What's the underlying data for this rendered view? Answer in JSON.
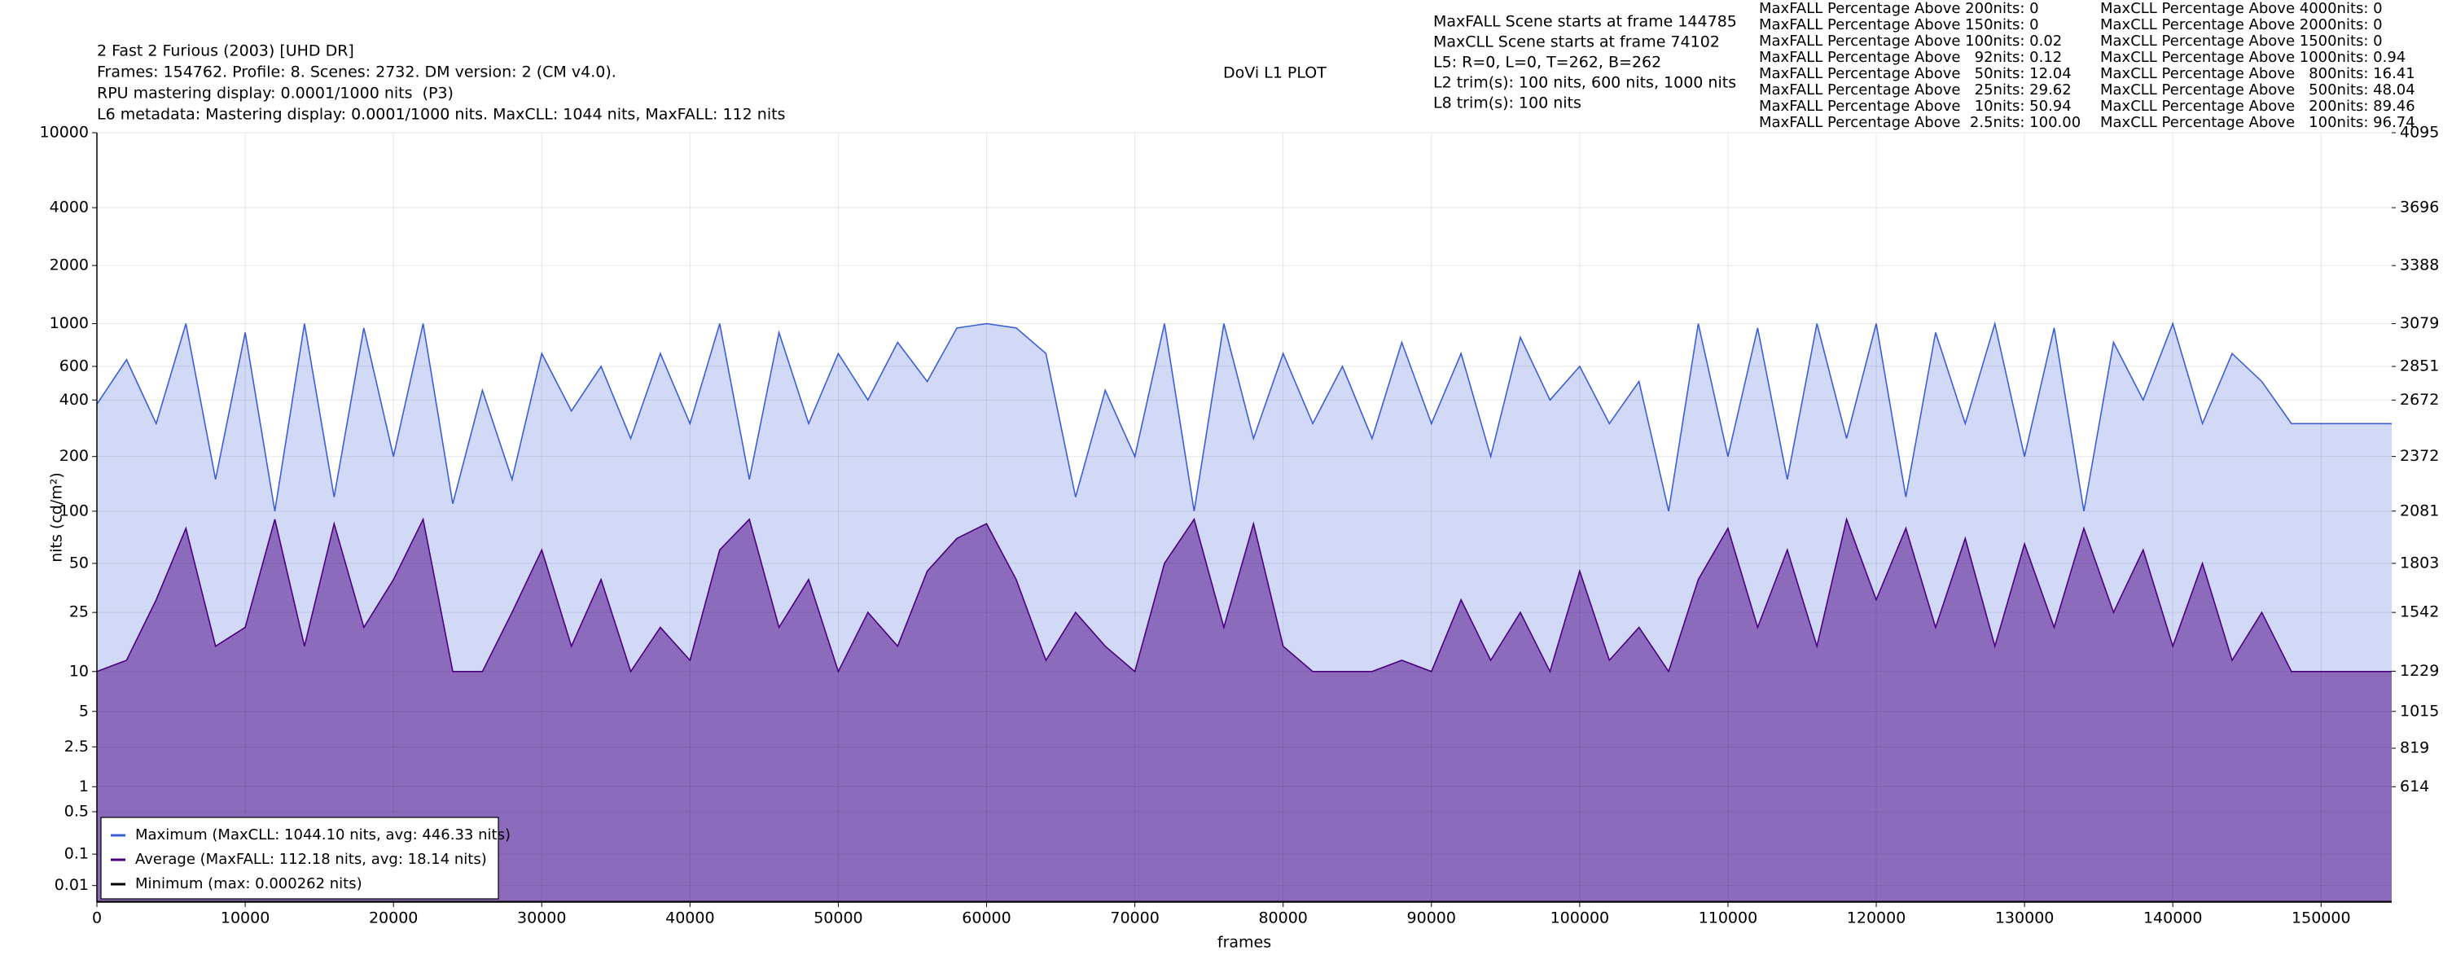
{
  "chart_data": {
    "type": "line",
    "title": "DoVi L1 PLOT",
    "info_lines": [
      "2 Fast 2 Furious (2003) [UHD DR]",
      "Frames: 154762. Profile: 8. Scenes: 2732. DM version: 2 (CM v4.0).",
      "RPU mastering display: 0.0001/1000 nits  (P3)",
      "L6 metadata: Mastering display: 0.0001/1000 nits. MaxCLL: 1044 nits, MaxFALL: 112 nits"
    ],
    "scene_lines": [
      "MaxFALL Scene starts at frame 144785",
      "MaxCLL Scene starts at frame 74102",
      "L5: R=0, L=0, T=262, B=262",
      "L2 trim(s): 100 nits, 600 nits, 1000 nits",
      "L8 trim(s): 100 nits"
    ],
    "maxfall_stats": [
      "MaxFALL Percentage Above 200nits: 0",
      "MaxFALL Percentage Above 150nits: 0",
      "MaxFALL Percentage Above 100nits: 0.02",
      "MaxFALL Percentage Above   92nits: 0.12",
      "MaxFALL Percentage Above   50nits: 12.04",
      "MaxFALL Percentage Above   25nits: 29.62",
      "MaxFALL Percentage Above   10nits: 50.94",
      "MaxFALL Percentage Above  2.5nits: 100.00"
    ],
    "maxcll_stats": [
      "MaxCLL Percentage Above 4000nits: 0",
      "MaxCLL Percentage Above 2000nits: 0",
      "MaxCLL Percentage Above 1500nits: 0",
      "MaxCLL Percentage Above 1000nits: 0.94",
      "MaxCLL Percentage Above   800nits: 16.41",
      "MaxCLL Percentage Above   500nits: 48.04",
      "MaxCLL Percentage Above   200nits: 89.46",
      "MaxCLL Percentage Above   100nits: 96.74"
    ],
    "x_label": "frames",
    "y_label": "nits (cd/m²)",
    "yscale": "pq",
    "grid": true,
    "legend": "lower left",
    "xlim": [
      0,
      154762
    ],
    "xticks": [
      0,
      10000,
      20000,
      30000,
      40000,
      50000,
      60000,
      70000,
      80000,
      90000,
      100000,
      110000,
      120000,
      130000,
      140000,
      150000
    ],
    "ylim": [
      0,
      10000
    ],
    "yticks": [
      0.01,
      0.1,
      0.5,
      1,
      2.5,
      5,
      10,
      25,
      50,
      100,
      200,
      400,
      600,
      1000,
      2000,
      4000,
      10000
    ],
    "y2lim": [
      0,
      4095
    ],
    "y2ticks": [
      614,
      819,
      1015,
      1229,
      1542,
      1803,
      2081,
      2372,
      2672,
      2851,
      3079,
      3388,
      3696,
      4095
    ],
    "x": [
      0,
      2000,
      4000,
      6000,
      8000,
      10000,
      12000,
      14000,
      16000,
      18000,
      20000,
      22000,
      24000,
      26000,
      28000,
      30000,
      32000,
      34000,
      36000,
      38000,
      40000,
      42000,
      44000,
      46000,
      48000,
      50000,
      52000,
      54000,
      56000,
      58000,
      60000,
      62000,
      64000,
      66000,
      68000,
      70000,
      72000,
      74000,
      76000,
      78000,
      80000,
      82000,
      84000,
      86000,
      88000,
      90000,
      92000,
      94000,
      96000,
      98000,
      100000,
      102000,
      104000,
      106000,
      108000,
      110000,
      112000,
      114000,
      116000,
      118000,
      120000,
      122000,
      124000,
      126000,
      128000,
      130000,
      132000,
      134000,
      136000,
      138000,
      140000,
      142000,
      144000,
      146000,
      148000,
      150000,
      152000,
      154000,
      154762
    ],
    "series": [
      {
        "name": "Maximum (MaxCLL: 1044.10 nits, avg: 446.33 nits)",
        "color": "#3b5fd9",
        "fill": "#d1d9f7",
        "values": [
          380,
          650,
          300,
          1000,
          150,
          900,
          100,
          1000,
          120,
          950,
          200,
          1000,
          110,
          450,
          150,
          700,
          350,
          600,
          250,
          700,
          300,
          1000,
          150,
          900,
          300,
          700,
          400,
          800,
          500,
          950,
          1000,
          950,
          700,
          120,
          450,
          200,
          1000,
          100,
          1000,
          250,
          700,
          300,
          600,
          250,
          800,
          300,
          700,
          200,
          850,
          400,
          600,
          300,
          500,
          100,
          1000,
          200,
          950,
          150,
          1000,
          250,
          1000,
          120,
          900,
          300,
          1000,
          200,
          950,
          100,
          800,
          400,
          1000,
          300,
          700,
          500,
          300,
          300,
          300,
          300,
          300
        ]
      },
      {
        "name": "Average (MaxFALL: 112.18 nits, avg: 18.14 nits)",
        "color": "#4b0082",
        "fill": "#8c6bbd",
        "values": [
          10,
          12,
          30,
          80,
          15,
          20,
          90,
          15,
          85,
          20,
          40,
          90,
          10,
          10,
          25,
          60,
          15,
          40,
          10,
          20,
          12,
          60,
          90,
          20,
          40,
          10,
          25,
          15,
          45,
          70,
          85,
          40,
          12,
          25,
          15,
          10,
          50,
          90,
          20,
          85,
          15,
          10,
          10,
          10,
          12,
          10,
          30,
          12,
          25,
          10,
          45,
          12,
          20,
          10,
          40,
          80,
          20,
          60,
          15,
          90,
          30,
          80,
          20,
          70,
          15,
          65,
          20,
          80,
          25,
          60,
          15,
          50,
          12,
          25,
          10,
          10,
          10,
          10,
          10
        ]
      },
      {
        "name": "Minimum (max: 0.000262 nits)",
        "color": "#000000",
        "values": [
          0,
          0,
          0,
          0,
          0,
          0,
          0,
          0,
          0,
          0,
          0,
          0,
          0,
          0,
          0,
          0,
          0,
          0,
          0,
          0,
          0,
          0,
          0,
          0,
          0,
          0,
          0,
          0,
          0,
          0,
          0,
          0,
          0,
          0,
          0,
          0,
          0,
          0,
          0,
          0,
          0,
          0,
          0,
          0,
          0,
          0,
          0,
          0,
          0,
          0,
          0,
          0,
          0,
          0,
          0,
          0,
          0,
          0,
          0,
          0,
          0,
          0,
          0,
          0,
          0,
          0,
          0,
          0,
          0,
          0,
          0,
          0,
          0,
          0,
          0,
          0,
          0,
          0,
          0
        ]
      }
    ]
  }
}
